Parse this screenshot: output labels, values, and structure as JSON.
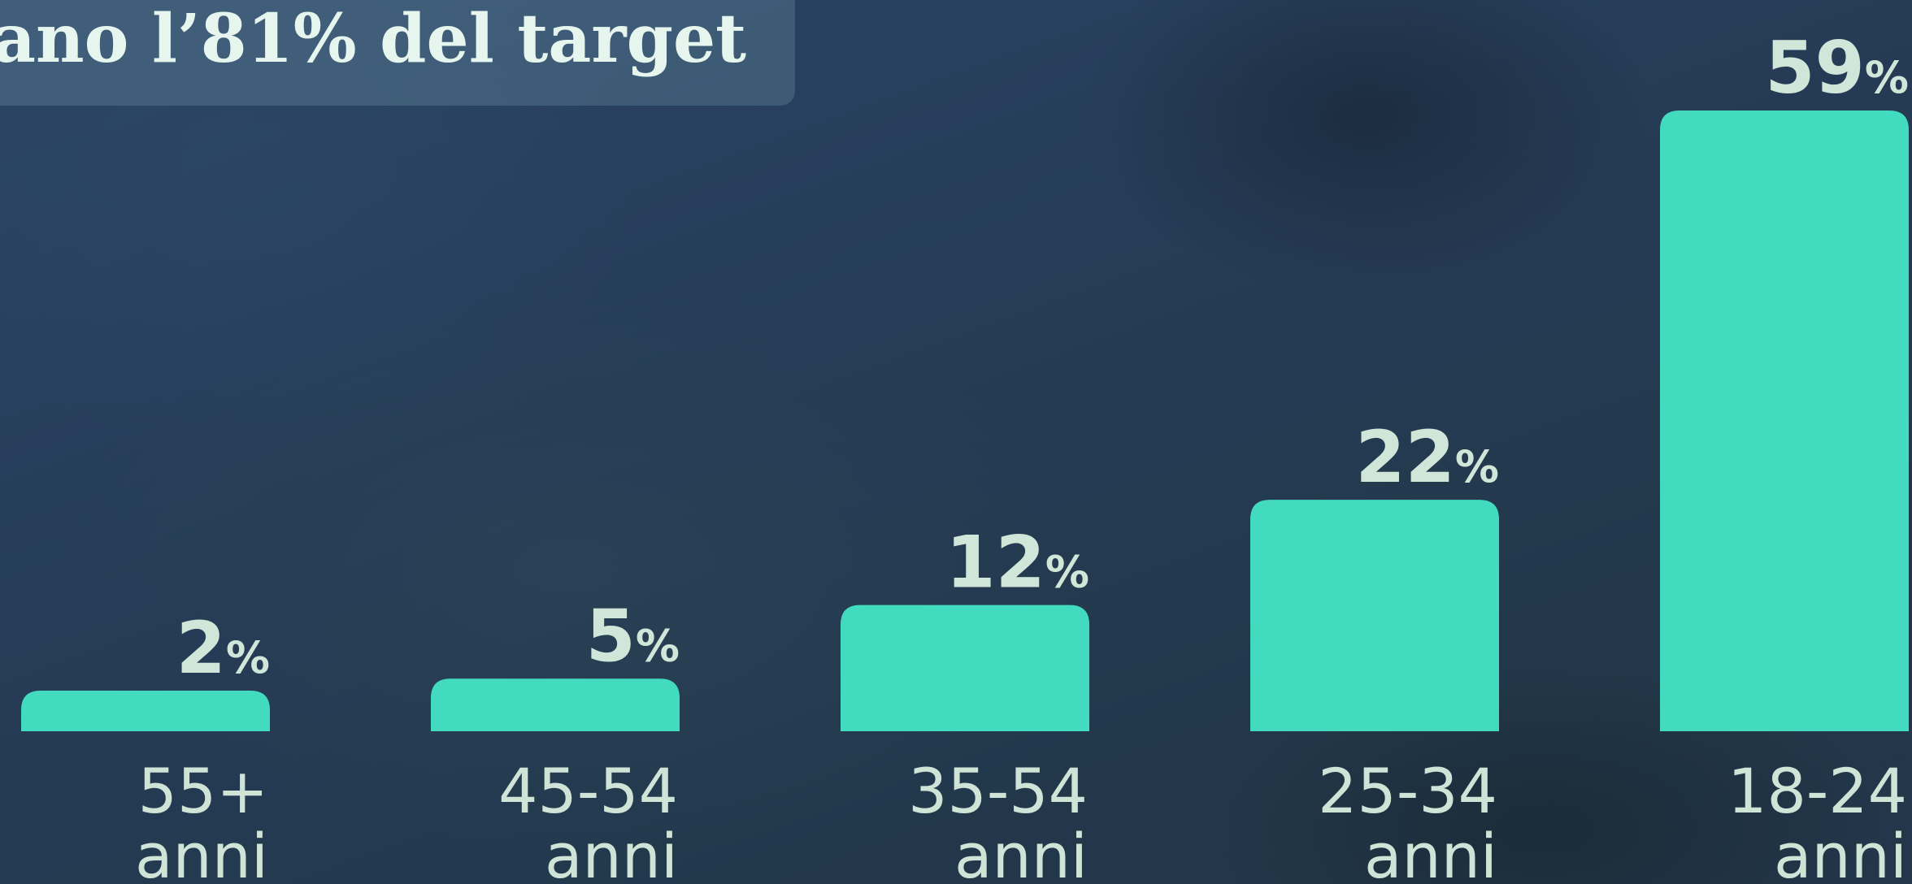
{
  "header": {
    "title": "ano l’81% del target"
  },
  "colors": {
    "bar": "#43dbbf",
    "label": "#cfe6d8"
  },
  "chart_data": {
    "type": "bar",
    "categories": [
      [
        "55+",
        "anni"
      ],
      [
        "45-54",
        "anni"
      ],
      [
        "35-54",
        "anni"
      ],
      [
        "25-34",
        "anni"
      ],
      [
        "18-24",
        "anni"
      ]
    ],
    "values": [
      2,
      5,
      12,
      22,
      59
    ],
    "value_suffix": "%",
    "ylim": [
      0,
      59
    ],
    "grid": false,
    "legend": "none"
  }
}
